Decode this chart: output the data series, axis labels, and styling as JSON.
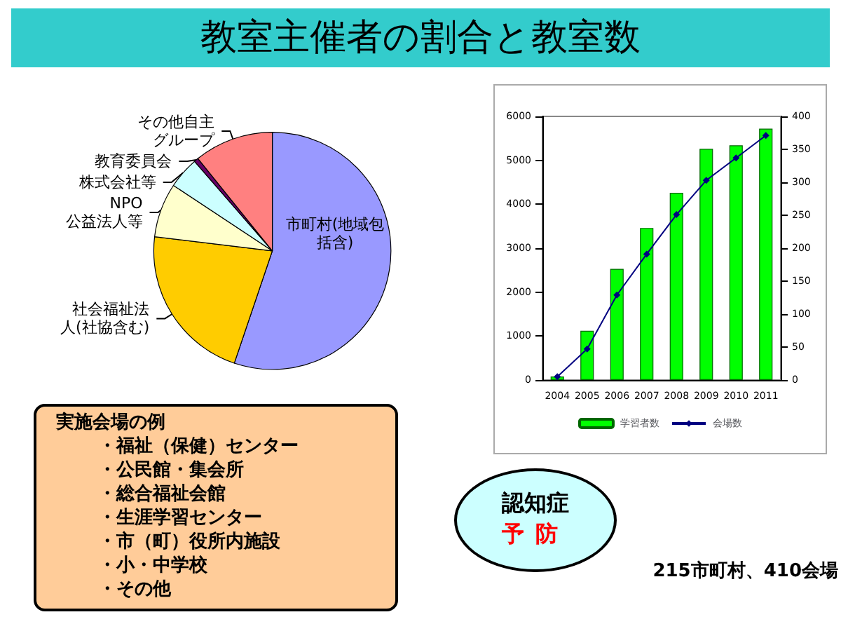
{
  "chart_data": [
    {
      "type": "pie",
      "title": "教室主催者の割合と教室数",
      "categories": [
        "市町村(地域包括含)",
        "社会福祉法人(社協含む)",
        "NPO\n公益法人等",
        "株式会社等",
        "教育委員会",
        "その他自主グループ"
      ],
      "values": [
        55.2,
        21.7,
        7.4,
        4.3,
        0.6,
        10.8
      ],
      "colors": [
        "#9999ff",
        "#ffcc00",
        "#ffffcc",
        "#ccffff",
        "#660066",
        "#ff8080"
      ],
      "legend": false
    },
    {
      "type": "bar",
      "categories": [
        "2004",
        "2005",
        "2006",
        "2007",
        "2008",
        "2009",
        "2010",
        "2011"
      ],
      "series": [
        {
          "name": "学習者数",
          "type": "bar",
          "color": "#00ff00",
          "values": [
            80,
            1120,
            2530,
            3460,
            4260,
            5260,
            5340,
            5720
          ]
        },
        {
          "name": "会場数",
          "type": "line",
          "axis": "y2",
          "color": "#000080",
          "marker": "diamond",
          "values": [
            5,
            47,
            129,
            191,
            251,
            303,
            337,
            371
          ]
        }
      ],
      "ylim": [
        0,
        6000
      ],
      "yticks": [
        0,
        1000,
        2000,
        3000,
        4000,
        5000,
        6000
      ],
      "y2lim": [
        0,
        400
      ],
      "y2ticks": [
        0,
        50,
        100,
        150,
        200,
        250,
        300,
        350,
        400
      ],
      "grid": false,
      "legend": "bottom"
    },
    {
      "type": "other",
      "title": "実施会場の例",
      "annotations": [
        "・福祉（保健）センター",
        "・公民館・集会所",
        "・総合福祉会館",
        "・生涯学習センター",
        "・市（町）役所内施設",
        "・小・中学校",
        "・その他"
      ]
    },
    {
      "type": "other",
      "title": "認知症",
      "subtitle": "予防",
      "annotations": [
        "215市町村、410会場"
      ]
    }
  ]
}
